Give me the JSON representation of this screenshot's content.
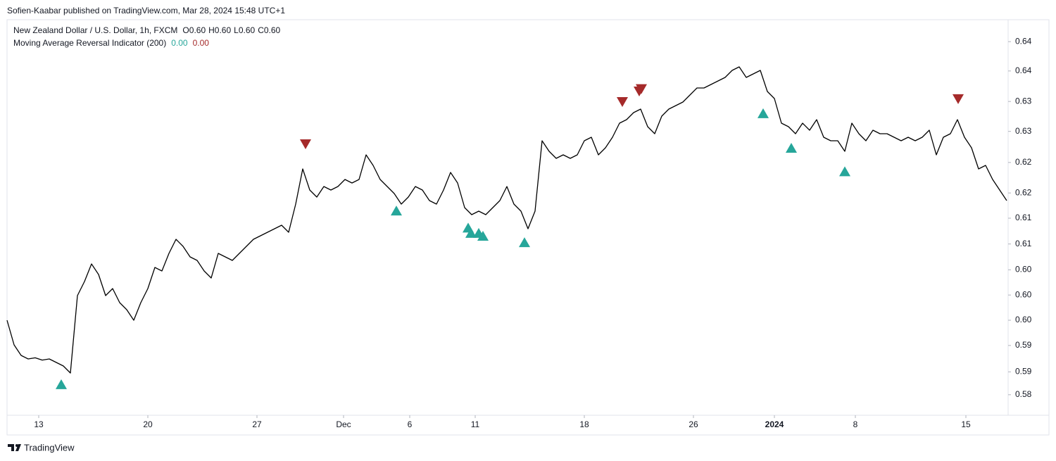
{
  "header": {
    "publisher": "Sofien-Kaabar published on TradingView.com, Mar 28, 2024 15:48 UTC+1"
  },
  "footer": {
    "brand": "TradingView"
  },
  "chart_data": {
    "type": "line",
    "symbol": "New Zealand Dollar / U.S. Dollar, 1h, FXCM",
    "ohlc_labels": [
      "O",
      "H",
      "L",
      "C"
    ],
    "ohlc_values": [
      0.6,
      0.6,
      0.6,
      0.6
    ],
    "ohlc_value_labels": [
      "0.60",
      "0.60",
      "0.60",
      "0.60"
    ],
    "indicator": "Moving Average Reversal Indicator (200)",
    "indicator_values": [
      0,
      0
    ],
    "indicator_value_labels": [
      "0.00",
      "0.00"
    ],
    "indicator_colors": [
      "#26a69a",
      "#a52a2a"
    ],
    "color": "#000000",
    "values": [
      0.5962,
      0.592,
      0.5902,
      0.5896,
      0.5898,
      0.5894,
      0.5896,
      0.589,
      0.5884,
      0.5872,
      0.6004,
      0.6028,
      0.6058,
      0.604,
      0.6004,
      0.6016,
      0.5992,
      0.598,
      0.5962,
      0.5992,
      0.6016,
      0.6052,
      0.6046,
      0.6076,
      0.61,
      0.6088,
      0.607,
      0.6064,
      0.6046,
      0.6034,
      0.6076,
      0.607,
      0.6064,
      0.6076,
      0.6088,
      0.61,
      0.6106,
      0.6112,
      0.6118,
      0.6124,
      0.6112,
      0.616,
      0.622,
      0.6184,
      0.6172,
      0.619,
      0.6184,
      0.619,
      0.6202,
      0.6196,
      0.6202,
      0.6244,
      0.6226,
      0.6202,
      0.619,
      0.6178,
      0.616,
      0.6172,
      0.619,
      0.6184,
      0.6166,
      0.616,
      0.6184,
      0.6214,
      0.6196,
      0.6154,
      0.6142,
      0.6148,
      0.6142,
      0.6154,
      0.6166,
      0.619,
      0.616,
      0.6148,
      0.6118,
      0.6148,
      0.6268,
      0.625,
      0.6238,
      0.6244,
      0.6238,
      0.6244,
      0.6268,
      0.6274,
      0.6244,
      0.6256,
      0.6274,
      0.6298,
      0.6304,
      0.6316,
      0.6322,
      0.6292,
      0.628,
      0.631,
      0.6322,
      0.6328,
      0.6334,
      0.6346,
      0.6358,
      0.6358,
      0.6364,
      0.637,
      0.6376,
      0.6388,
      0.6394,
      0.6376,
      0.6382,
      0.6388,
      0.6352,
      0.634,
      0.6298,
      0.6292,
      0.628,
      0.6298,
      0.6286,
      0.6304,
      0.6274,
      0.6268,
      0.6268,
      0.625,
      0.6298,
      0.628,
      0.6268,
      0.6286,
      0.628,
      0.628,
      0.6274,
      0.6268,
      0.6274,
      0.6268,
      0.6274,
      0.6286,
      0.6244,
      0.6274,
      0.628,
      0.6304,
      0.6274,
      0.6256,
      0.622,
      0.6226,
      0.6202,
      0.6184,
      0.6166
    ],
    "bullish_signals": {
      "color": "#26a69a",
      "x": [
        7.7,
        55.3,
        65.5,
        65.9,
        67,
        67.6,
        73.5,
        107.4,
        111.4,
        119
      ],
      "y": [
        0.5853,
        0.6149,
        0.612,
        0.6111,
        0.6111,
        0.6106,
        0.6095,
        0.6315,
        0.6256,
        0.6216
      ]
    },
    "bearish_signals": {
      "color": "#a52a2a",
      "x": [
        42.4,
        87.4,
        89.8,
        90.1,
        135.1
      ],
      "y": [
        0.6262,
        0.6334,
        0.6352,
        0.6356,
        0.6339
      ]
    },
    "xlim": [
      0,
      145.2
    ],
    "xticks": [
      {
        "value": 4.5,
        "label": "13"
      },
      {
        "value": 20,
        "label": "20"
      },
      {
        "value": 35.5,
        "label": "27"
      },
      {
        "value": 47.8,
        "label": "Dec"
      },
      {
        "value": 57.2,
        "label": "6"
      },
      {
        "value": 66.5,
        "label": "11"
      },
      {
        "value": 82,
        "label": "18"
      },
      {
        "value": 97.5,
        "label": "26"
      },
      {
        "value": 109,
        "label": "2024"
      },
      {
        "value": 120.5,
        "label": "8"
      },
      {
        "value": 136.2,
        "label": "15"
      }
    ],
    "ylim": [
      0.58,
      0.6472
    ],
    "yticks": [
      {
        "value": 0.5835,
        "label": "0.58"
      },
      {
        "value": 0.5874,
        "label": "0.59"
      },
      {
        "value": 0.5919,
        "label": "0.59"
      },
      {
        "value": 0.5962,
        "label": "0.60"
      },
      {
        "value": 0.6005,
        "label": "0.60"
      },
      {
        "value": 0.6048,
        "label": "0.60"
      },
      {
        "value": 0.6092,
        "label": "0.61"
      },
      {
        "value": 0.6136,
        "label": "0.61"
      },
      {
        "value": 0.6179,
        "label": "0.62"
      },
      {
        "value": 0.6231,
        "label": "0.62"
      },
      {
        "value": 0.6284,
        "label": "0.63"
      },
      {
        "value": 0.6335,
        "label": "0.63"
      },
      {
        "value": 0.6387,
        "label": "0.64"
      },
      {
        "value": 0.6437,
        "label": "0.64"
      }
    ]
  }
}
